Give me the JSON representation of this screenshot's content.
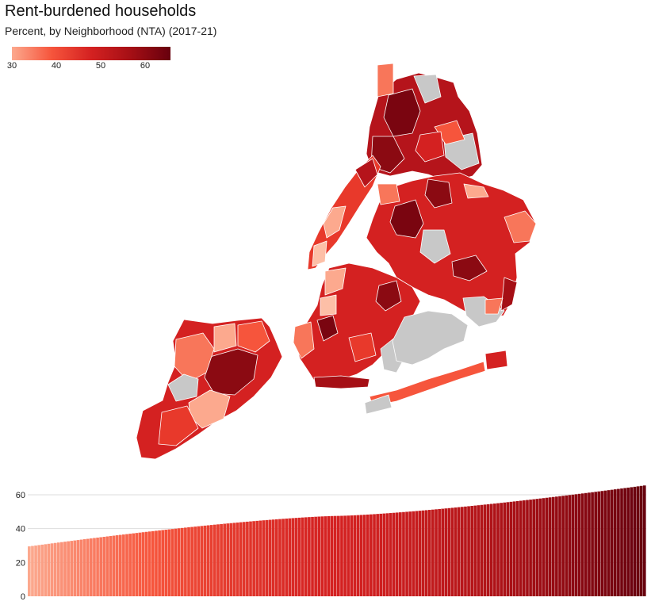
{
  "header": {
    "title": "Rent-burdened households",
    "subtitle": "Percent, by Neighborhood (NTA) (2017-21)"
  },
  "legend": {
    "ticks": [
      "30",
      "40",
      "50",
      "60"
    ],
    "min": 29.5,
    "max": 65.5,
    "colors": [
      "#fca98e",
      "#f6553c",
      "#d42121",
      "#a50f15",
      "#67000d"
    ]
  },
  "colors": {
    "no_data": "#c8c8c8",
    "gridline": "#dddddd"
  },
  "chart_data": {
    "type": "bar",
    "ylim": [
      0,
      68
    ],
    "yticks": [
      0,
      20,
      40,
      60
    ],
    "count": 190,
    "value_min": 29.5,
    "value_max": 65.5
  }
}
